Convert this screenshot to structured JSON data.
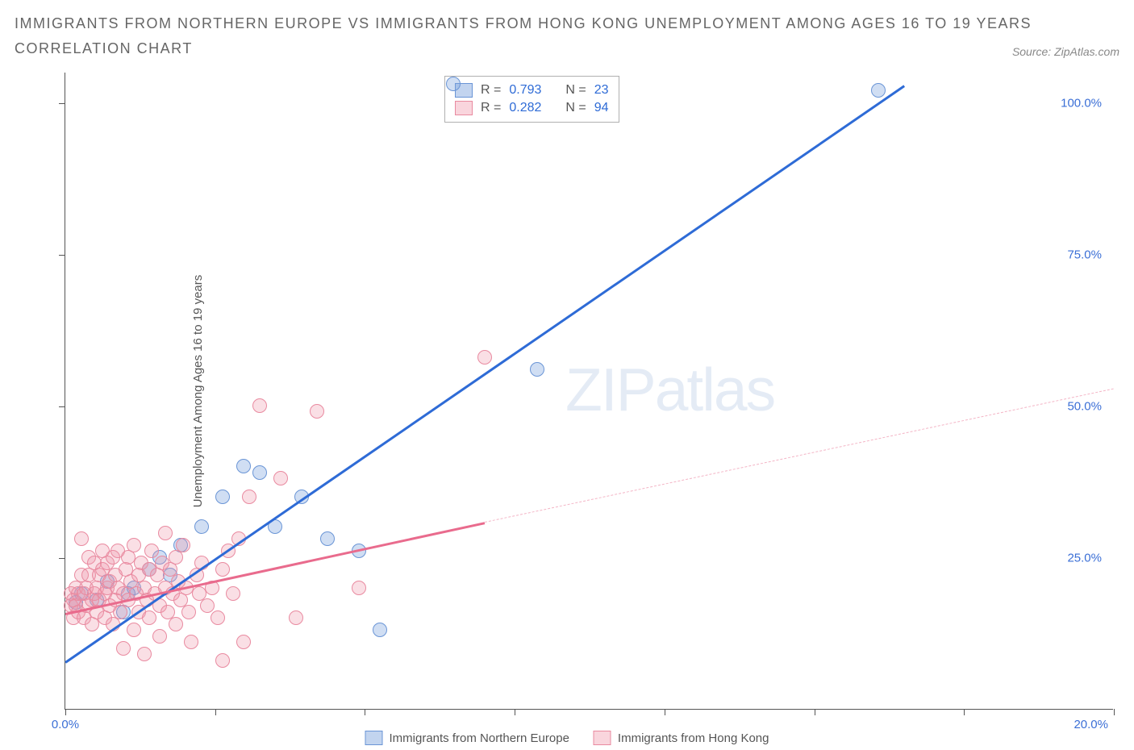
{
  "title": "IMMIGRANTS FROM NORTHERN EUROPE VS IMMIGRANTS FROM HONG KONG UNEMPLOYMENT AMONG AGES 16 TO 19 YEARS CORRELATION CHART",
  "source": "Source: ZipAtlas.com",
  "watermark": "ZIPatlas",
  "chart": {
    "type": "scatter",
    "ylabel": "Unemployment Among Ages 16 to 19 years",
    "xlim": [
      0,
      20
    ],
    "ylim": [
      0,
      105
    ],
    "xticks": [
      0,
      2.86,
      5.71,
      8.57,
      11.43,
      14.29,
      17.14,
      20
    ],
    "xtick_labels": {
      "left": "0.0%",
      "right": "20.0%"
    },
    "yticks": [
      25,
      50,
      75,
      100
    ],
    "ytick_labels": [
      "25.0%",
      "50.0%",
      "75.0%",
      "100.0%"
    ],
    "background_color": "#ffffff",
    "axis_color": "#555555",
    "colors": {
      "blue_fill": "rgba(120,160,220,0.35)",
      "blue_stroke": "#6a95d6",
      "blue_line": "#2e6bd6",
      "pink_fill": "rgba(240,150,170,0.30)",
      "pink_stroke": "#e98aa0",
      "pink_line": "#e96b8d",
      "value_text": "#2e6bd6",
      "label_text": "#555555"
    },
    "marker_size": 18,
    "line_width": 2.5,
    "series": [
      {
        "name": "Immigrants from Northern Europe",
        "color_key": "blue",
        "R": 0.793,
        "N": 23,
        "trend": {
          "x1": 0,
          "y1": 8,
          "x2": 16,
          "y2": 103,
          "dashed_after": null
        },
        "points": [
          [
            0.2,
            17.5
          ],
          [
            0.3,
            19
          ],
          [
            0.6,
            18
          ],
          [
            0.8,
            21
          ],
          [
            1.1,
            16
          ],
          [
            1.2,
            19
          ],
          [
            1.3,
            20
          ],
          [
            1.6,
            23
          ],
          [
            1.8,
            25
          ],
          [
            2.0,
            22
          ],
          [
            2.2,
            27
          ],
          [
            2.6,
            30
          ],
          [
            3.0,
            35
          ],
          [
            3.4,
            40
          ],
          [
            3.7,
            39
          ],
          [
            4.0,
            30
          ],
          [
            4.5,
            35
          ],
          [
            5.0,
            28
          ],
          [
            5.6,
            26
          ],
          [
            6.0,
            13
          ],
          [
            7.4,
            103
          ],
          [
            9.0,
            56
          ],
          [
            15.5,
            102
          ]
        ]
      },
      {
        "name": "Immigrants from Hong Kong",
        "color_key": "pink",
        "R": 0.282,
        "N": 94,
        "trend": {
          "x1": 0,
          "y1": 16,
          "x2": 8,
          "y2": 31,
          "dashed_after": {
            "x2": 20,
            "y2": 53
          }
        },
        "points": [
          [
            0.1,
            17
          ],
          [
            0.1,
            19
          ],
          [
            0.15,
            15
          ],
          [
            0.15,
            18
          ],
          [
            0.2,
            17
          ],
          [
            0.2,
            20
          ],
          [
            0.25,
            16
          ],
          [
            0.25,
            19
          ],
          [
            0.3,
            22
          ],
          [
            0.3,
            28
          ],
          [
            0.35,
            19
          ],
          [
            0.35,
            15
          ],
          [
            0.4,
            17
          ],
          [
            0.4,
            20
          ],
          [
            0.45,
            22
          ],
          [
            0.45,
            25
          ],
          [
            0.5,
            18
          ],
          [
            0.5,
            14
          ],
          [
            0.55,
            19
          ],
          [
            0.55,
            24
          ],
          [
            0.6,
            16
          ],
          [
            0.6,
            20
          ],
          [
            0.65,
            18
          ],
          [
            0.65,
            22
          ],
          [
            0.7,
            23
          ],
          [
            0.7,
            26
          ],
          [
            0.75,
            15
          ],
          [
            0.75,
            19
          ],
          [
            0.8,
            20
          ],
          [
            0.8,
            24
          ],
          [
            0.85,
            17
          ],
          [
            0.85,
            21
          ],
          [
            0.9,
            25
          ],
          [
            0.9,
            14
          ],
          [
            0.95,
            18
          ],
          [
            0.95,
            22
          ],
          [
            1.0,
            20
          ],
          [
            1.0,
            26
          ],
          [
            1.05,
            16
          ],
          [
            1.1,
            19
          ],
          [
            1.1,
            10
          ],
          [
            1.15,
            23
          ],
          [
            1.2,
            25
          ],
          [
            1.2,
            18
          ],
          [
            1.25,
            21
          ],
          [
            1.3,
            13
          ],
          [
            1.3,
            27
          ],
          [
            1.35,
            19
          ],
          [
            1.4,
            22
          ],
          [
            1.4,
            16
          ],
          [
            1.45,
            24
          ],
          [
            1.5,
            20
          ],
          [
            1.5,
            9
          ],
          [
            1.55,
            18
          ],
          [
            1.6,
            23
          ],
          [
            1.6,
            15
          ],
          [
            1.65,
            26
          ],
          [
            1.7,
            19
          ],
          [
            1.75,
            22
          ],
          [
            1.8,
            17
          ],
          [
            1.8,
            12
          ],
          [
            1.85,
            24
          ],
          [
            1.9,
            20
          ],
          [
            1.9,
            29
          ],
          [
            1.95,
            16
          ],
          [
            2.0,
            23
          ],
          [
            2.05,
            19
          ],
          [
            2.1,
            25
          ],
          [
            2.1,
            14
          ],
          [
            2.15,
            21
          ],
          [
            2.2,
            18
          ],
          [
            2.25,
            27
          ],
          [
            2.3,
            20
          ],
          [
            2.35,
            16
          ],
          [
            2.4,
            11
          ],
          [
            2.5,
            22
          ],
          [
            2.55,
            19
          ],
          [
            2.6,
            24
          ],
          [
            2.7,
            17
          ],
          [
            2.8,
            20
          ],
          [
            2.9,
            15
          ],
          [
            3.0,
            23
          ],
          [
            3.0,
            8
          ],
          [
            3.1,
            26
          ],
          [
            3.2,
            19
          ],
          [
            3.3,
            28
          ],
          [
            3.4,
            11
          ],
          [
            3.5,
            35
          ],
          [
            3.7,
            50
          ],
          [
            4.1,
            38
          ],
          [
            4.4,
            15
          ],
          [
            4.8,
            49
          ],
          [
            5.6,
            20
          ],
          [
            8.0,
            58
          ]
        ]
      }
    ]
  },
  "legend_top": {
    "row1_label_R": "R =",
    "row1_label_N": "N =",
    "rows": [
      {
        "swatch": "blue",
        "R": "0.793",
        "N": "23"
      },
      {
        "swatch": "pink",
        "R": "0.282",
        "N": "94"
      }
    ]
  },
  "legend_bottom": {
    "items": [
      {
        "swatch": "blue",
        "label": "Immigrants from Northern Europe"
      },
      {
        "swatch": "pink",
        "label": "Immigrants from Hong Kong"
      }
    ]
  }
}
